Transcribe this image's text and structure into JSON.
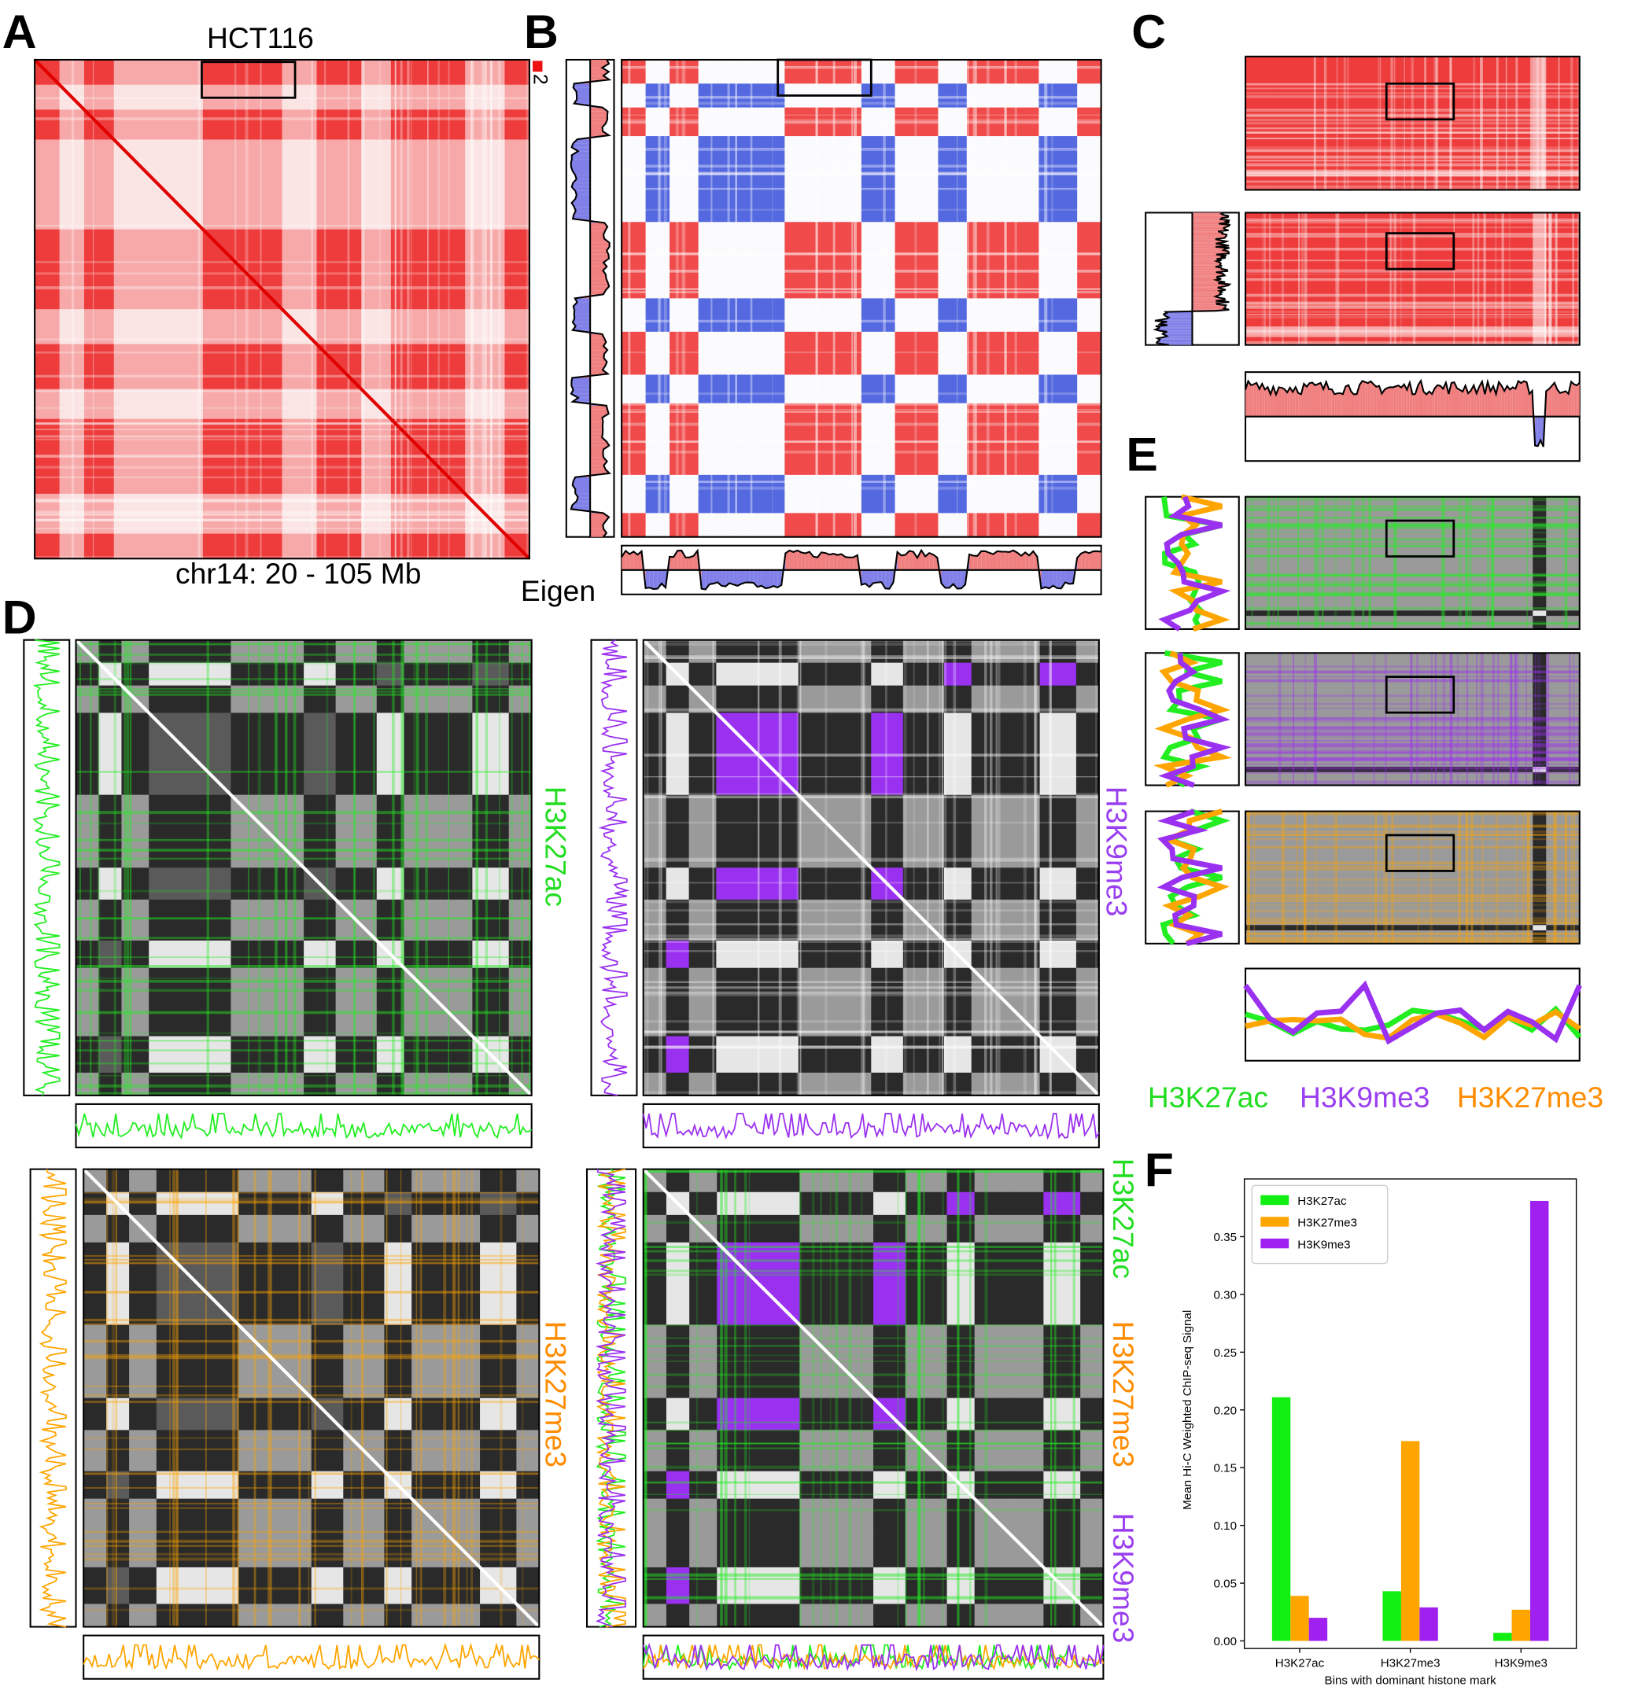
{
  "panels": {
    "a": "A",
    "b": "B",
    "c": "C",
    "d": "D",
    "e": "E",
    "f": "F"
  },
  "panel_a": {
    "title": "HCT116",
    "scale_label": "2",
    "xlabel": "chr14: 20 - 105 Mb"
  },
  "panel_b": {
    "track_label": "Eigen"
  },
  "panel_d": {
    "labels": [
      "H3K27ac",
      "H3K9me3",
      "H3K27me3"
    ],
    "combined_labels": [
      "H3K27ac",
      "H3K27me3",
      "H3K9me3"
    ]
  },
  "panel_e": {
    "legend": [
      "H3K27ac",
      "H3K9me3",
      "H3K27me3"
    ]
  },
  "chart_data": {
    "type": "bar",
    "ylabel": "Mean Hi-C Weighted ChIP-seq Signal",
    "xlabel": "Bins with dominant histone mark",
    "categories": [
      "H3K27ac",
      "H3K27me3",
      "H3K9me3"
    ],
    "series": [
      {
        "name": "H3K27ac",
        "color": "#11ee11",
        "values": [
          0.211,
          0.043,
          0.007
        ]
      },
      {
        "name": "H3K27me3",
        "color": "#ffa500",
        "values": [
          0.039,
          0.173,
          0.027
        ]
      },
      {
        "name": "H3K9me3",
        "color": "#a020f0",
        "values": [
          0.02,
          0.029,
          0.381
        ]
      }
    ],
    "ylim": [
      0,
      0.4
    ],
    "yticks": [
      {
        "value": 0,
        "label": "0.00"
      },
      {
        "value": 0.05,
        "label": "0.05"
      },
      {
        "value": 0.1,
        "label": "0.10"
      },
      {
        "value": 0.15,
        "label": "0.15"
      },
      {
        "value": 0.2,
        "label": "0.20"
      },
      {
        "value": 0.25,
        "label": "0.25"
      },
      {
        "value": 0.3,
        "label": "0.30"
      },
      {
        "value": 0.35,
        "label": "0.35"
      }
    ],
    "legend": "upper left"
  }
}
